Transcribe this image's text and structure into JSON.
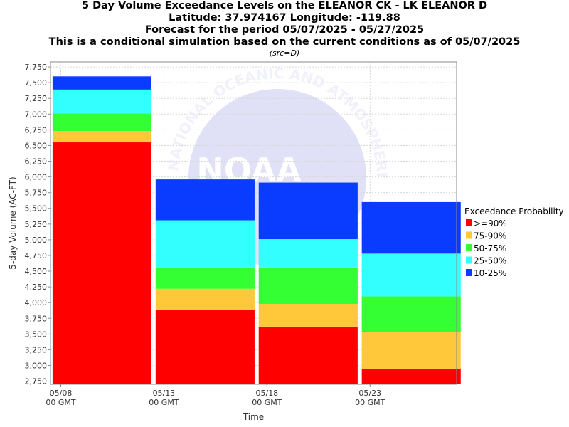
{
  "header": {
    "lines": [
      "5 Day Volume Exceedance Levels on the ELEANOR CK - LK ELEANOR D",
      "Latitude: 37.974167 Longitude: -119.88",
      "Forecast for the period 05/07/2025 - 05/27/2025",
      "This is a conditional simulation based on the current conditions as of 05/07/2025"
    ],
    "subtitle": "(src=D)"
  },
  "chart_data": {
    "type": "bar",
    "stacked": true,
    "xlabel": "Time",
    "ylabel": "5-day Volume (AC-FT)",
    "ylim": [
      2700,
      7830
    ],
    "yticks": [
      2750,
      3000,
      3250,
      3500,
      3750,
      4000,
      4250,
      4500,
      4750,
      5000,
      5250,
      5500,
      5750,
      6000,
      6250,
      6500,
      6750,
      7000,
      7250,
      7500,
      7750
    ],
    "ytick_labels": [
      "2,750",
      "3,000",
      "3,250",
      "3,500",
      "3,750",
      "4,000",
      "4,250",
      "4,500",
      "4,750",
      "5,000",
      "5,250",
      "5,500",
      "5,750",
      "6,000",
      "6,250",
      "6,500",
      "6,750",
      "7,000",
      "7,250",
      "7,500",
      "7,750"
    ],
    "x_range_days": [
      -0.5,
      19.2
    ],
    "xticks": [
      {
        "day": 0,
        "label": "05/08",
        "sub": "00 GMT"
      },
      {
        "day": 5,
        "label": "05/13",
        "sub": "00 GMT"
      },
      {
        "day": 10,
        "label": "05/18",
        "sub": "00 GMT"
      },
      {
        "day": 15,
        "label": "05/23",
        "sub": "00 GMT"
      }
    ],
    "bars": [
      {
        "start_day": -0.4,
        "end_day": 4.4,
        "levels": [
          6550,
          6730,
          7010,
          7390,
          7600
        ]
      },
      {
        "start_day": 4.6,
        "end_day": 9.4,
        "levels": [
          3890,
          4220,
          4560,
          5310,
          5960
        ]
      },
      {
        "start_day": 9.6,
        "end_day": 14.4,
        "levels": [
          3610,
          3980,
          4560,
          5010,
          5910
        ]
      },
      {
        "start_day": 14.6,
        "end_day": 19.4,
        "levels": [
          2940,
          3530,
          4100,
          4780,
          5600
        ]
      }
    ],
    "legend": {
      "title": "Exceedance Probability",
      "position": "right",
      "items": [
        {
          "label": ">=90%",
          "color": "#ff0000"
        },
        {
          "label": "75-90%",
          "color": "#ffc83a"
        },
        {
          "label": "50-75%",
          "color": "#33ff33"
        },
        {
          "label": "25-50%",
          "color": "#33ffff"
        },
        {
          "label": "10-25%",
          "color": "#0a3cff"
        }
      ]
    },
    "grid": true
  },
  "watermark": {
    "text": "NATIONAL OCEANIC AND ATMOSPHERIC ADMINISTRATION",
    "logo": "NOAA"
  }
}
